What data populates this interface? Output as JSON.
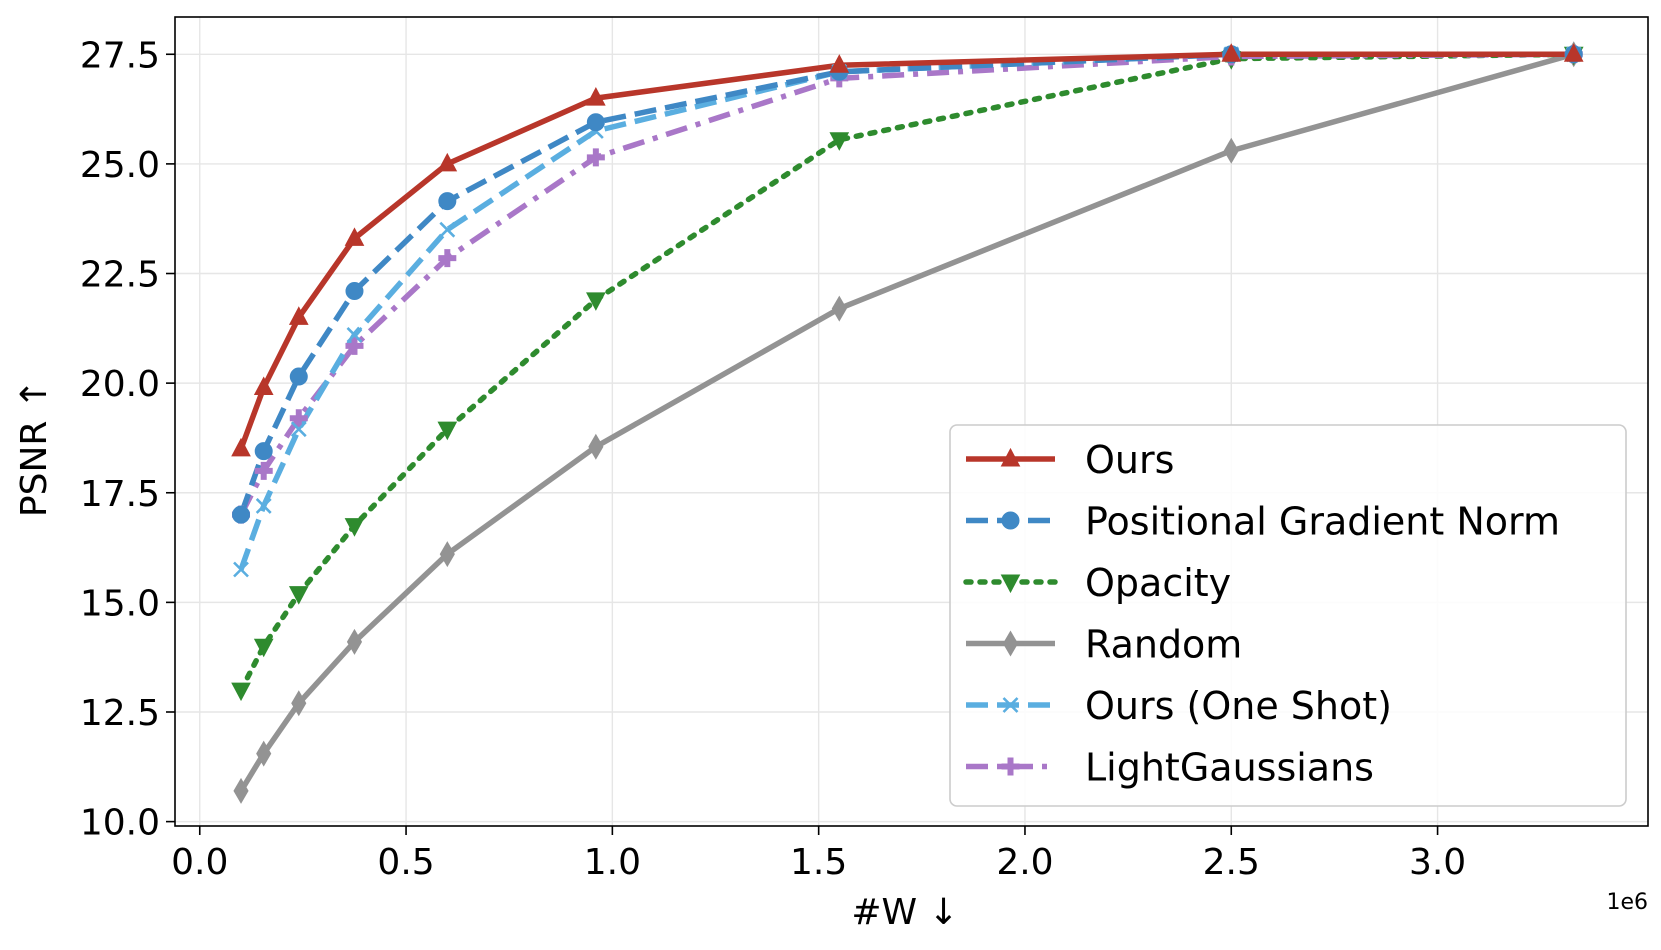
{
  "chart_data": {
    "type": "line",
    "title": "",
    "xlabel": "#W  ↓",
    "ylabel": "PSNR  ↑",
    "x_offset_label": "1e6",
    "xlim": [
      -0.06,
      3.51
    ],
    "ylim": [
      9.9,
      28.35
    ],
    "xticks": [
      0.0,
      0.5,
      1.0,
      1.5,
      2.0,
      2.5,
      3.0
    ],
    "xtick_labels": [
      "0.0",
      "0.5",
      "1.0",
      "1.5",
      "2.0",
      "2.5",
      "3.0"
    ],
    "yticks": [
      10.0,
      12.5,
      15.0,
      17.5,
      20.0,
      22.5,
      25.0,
      27.5
    ],
    "ytick_labels": [
      "10.0",
      "12.5",
      "15.0",
      "17.5",
      "20.0",
      "22.5",
      "25.0",
      "27.5"
    ],
    "grid": true,
    "legend_position": "lower-right",
    "series": [
      {
        "name": "Ours",
        "color": "#b8362a",
        "dash": "solid",
        "marker": "triangle-up",
        "x": [
          0.1,
          0.155,
          0.24,
          0.375,
          0.6,
          0.96,
          1.55,
          2.5,
          3.33
        ],
        "values": [
          18.5,
          19.9,
          21.5,
          23.3,
          25.0,
          26.5,
          27.25,
          27.5,
          27.5
        ]
      },
      {
        "name": "Positional Gradient Norm",
        "color": "#3f88c5",
        "dash": "dashed",
        "marker": "circle",
        "x": [
          0.1,
          0.155,
          0.24,
          0.375,
          0.6,
          0.96,
          1.55,
          2.5,
          3.33
        ],
        "values": [
          17.0,
          18.45,
          20.15,
          22.1,
          24.15,
          25.95,
          27.1,
          27.5,
          27.5
        ]
      },
      {
        "name": "Opacity",
        "color": "#2e8b2e",
        "dash": "dotted",
        "marker": "triangle-down",
        "x": [
          0.1,
          0.155,
          0.24,
          0.375,
          0.6,
          0.96,
          1.55,
          2.5,
          3.33
        ],
        "values": [
          13.0,
          14.0,
          15.2,
          16.75,
          18.95,
          21.9,
          25.55,
          27.4,
          27.5
        ]
      },
      {
        "name": "Random",
        "color": "#939393",
        "dash": "solid",
        "marker": "thin-diamond",
        "x": [
          0.1,
          0.155,
          0.24,
          0.375,
          0.6,
          0.96,
          1.55,
          2.5,
          3.33
        ],
        "values": [
          10.7,
          11.55,
          12.7,
          14.1,
          16.1,
          18.55,
          21.7,
          25.3,
          27.5
        ]
      },
      {
        "name": "Ours (One Shot)",
        "color": "#5aaee0",
        "dash": "dashed",
        "marker": "x",
        "x": [
          0.1,
          0.155,
          0.24,
          0.375,
          0.6,
          0.96,
          1.55,
          2.5,
          3.33
        ],
        "values": [
          15.75,
          17.2,
          18.95,
          21.1,
          23.5,
          25.75,
          27.1,
          27.5,
          27.5
        ]
      },
      {
        "name": "LightGaussians",
        "color": "#a977c8",
        "dash": "dashdot",
        "marker": "plus",
        "x": [
          0.1,
          0.155,
          0.24,
          0.375,
          0.6,
          0.96,
          1.55,
          2.5,
          3.33
        ],
        "values": [
          17.0,
          18.0,
          19.2,
          20.85,
          22.85,
          25.15,
          26.95,
          27.45,
          27.5
        ]
      }
    ]
  }
}
